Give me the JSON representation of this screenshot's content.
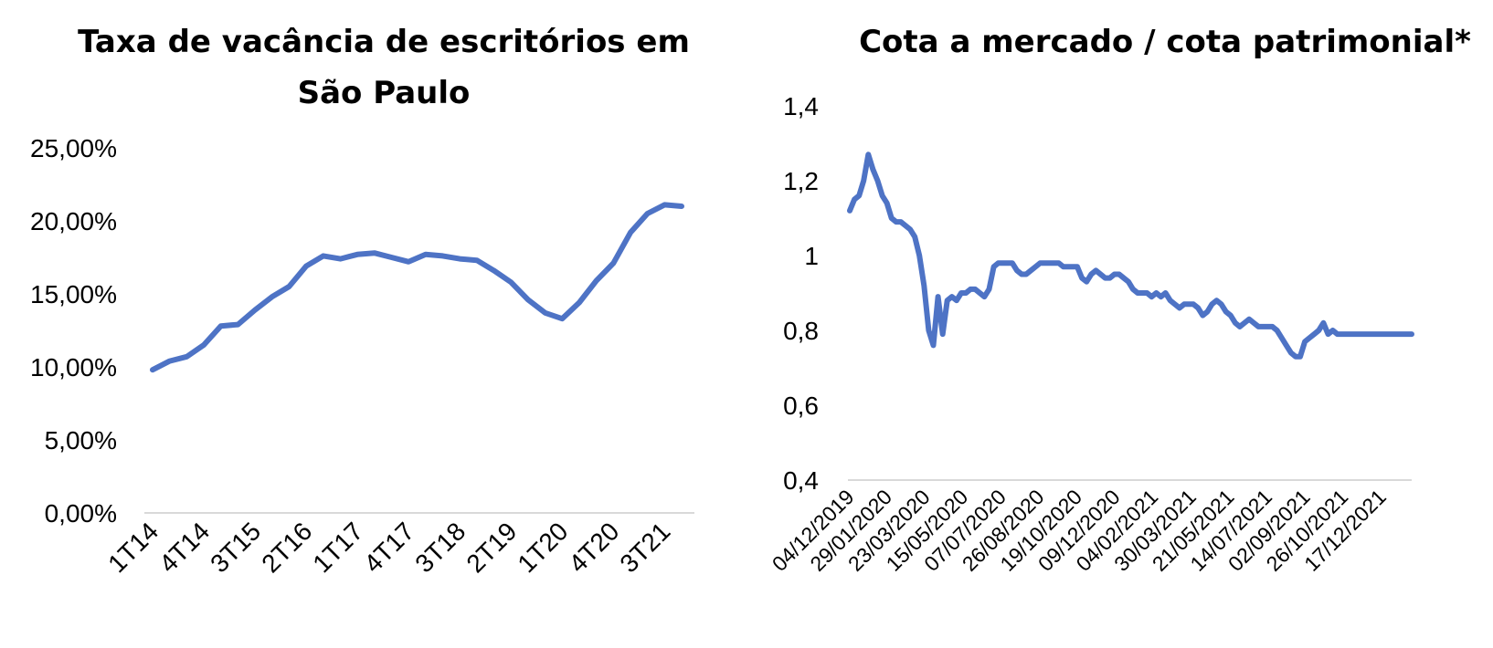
{
  "chart_data": [
    {
      "type": "line",
      "title_line1": "Taxa de vacância de escritórios em",
      "title_line2": "São Paulo",
      "xlabel": "",
      "ylabel": "",
      "ylim": [
        0,
        25
      ],
      "y_ticks": [
        "0,00%",
        "5,00%",
        "10,00%",
        "15,00%",
        "20,00%",
        "25,00%"
      ],
      "grid": false,
      "legend": "none",
      "color": "#4e73c5",
      "x_tick_labels": [
        "1T14",
        "4T14",
        "3T15",
        "2T16",
        "1T17",
        "4T17",
        "3T18",
        "2T19",
        "1T20",
        "4T20",
        "3T21"
      ],
      "categories": [
        "1T14",
        "2T14",
        "3T14",
        "4T14",
        "1T15",
        "2T15",
        "3T15",
        "4T15",
        "1T16",
        "2T16",
        "3T16",
        "4T16",
        "1T17",
        "2T17",
        "3T17",
        "4T17",
        "1T18",
        "2T18",
        "3T18",
        "4T18",
        "1T19",
        "2T19",
        "3T19",
        "4T19",
        "1T20",
        "2T20",
        "3T20",
        "4T20",
        "1T21",
        "2T21",
        "3T21",
        "4T21"
      ],
      "values": [
        9.8,
        10.4,
        10.7,
        11.5,
        12.8,
        12.9,
        13.9,
        14.8,
        15.5,
        16.9,
        17.6,
        17.4,
        17.7,
        17.8,
        17.5,
        17.2,
        17.7,
        17.6,
        17.4,
        17.3,
        16.6,
        15.8,
        14.6,
        13.7,
        13.3,
        14.4,
        15.9,
        17.1,
        19.2,
        20.5,
        21.1,
        21.0
      ]
    },
    {
      "type": "line",
      "title": "Cota a mercado / cota patrimonial*",
      "xlabel": "",
      "ylabel": "",
      "ylim": [
        0.4,
        1.4
      ],
      "y_ticks": [
        "0,4",
        "0,6",
        "0,8",
        "1",
        "1,2",
        "1,4"
      ],
      "grid": false,
      "legend": "none",
      "color": "#4e73c5",
      "x_tick_labels": [
        "04/12/2019",
        "29/01/2020",
        "23/03/2020",
        "15/05/2020",
        "07/07/2020",
        "26/08/2020",
        "19/10/2020",
        "09/12/2020",
        "04/02/2021",
        "30/03/2021",
        "21/05/2021",
        "14/07/2021",
        "02/09/2021",
        "26/10/2021",
        "17/12/2021"
      ],
      "x": [
        "04/12/2019",
        "09/12/2019",
        "13/12/2019",
        "18/12/2019",
        "20/12/2019",
        "23/12/2019",
        "27/12/2019",
        "03/01/2020",
        "10/01/2020",
        "17/01/2020",
        "24/01/2020",
        "31/01/2020",
        "07/02/2020",
        "14/02/2020",
        "21/02/2020",
        "28/02/2020",
        "06/03/2020",
        "11/03/2020",
        "13/03/2020",
        "16/03/2020",
        "18/03/2020",
        "20/03/2020",
        "23/03/2020",
        "25/03/2020",
        "27/03/2020",
        "30/03/2020",
        "02/04/2020",
        "09/04/2020",
        "17/04/2020",
        "24/04/2020",
        "01/05/2020",
        "08/05/2020",
        "15/05/2020",
        "22/05/2020",
        "29/05/2020",
        "05/06/2020",
        "12/06/2020",
        "19/06/2020",
        "26/06/2020",
        "03/07/2020",
        "10/07/2020",
        "17/07/2020",
        "24/07/2020",
        "31/07/2020",
        "07/08/2020",
        "14/08/2020",
        "21/08/2020",
        "28/08/2020",
        "04/09/2020",
        "11/09/2020",
        "18/09/2020",
        "25/09/2020",
        "02/10/2020",
        "09/10/2020",
        "16/10/2020",
        "23/10/2020",
        "30/10/2020",
        "06/11/2020",
        "13/11/2020",
        "20/11/2020",
        "27/11/2020",
        "04/12/2020",
        "11/12/2020",
        "18/12/2020",
        "23/12/2020",
        "30/12/2020",
        "08/01/2021",
        "15/01/2021",
        "22/01/2021",
        "29/01/2021",
        "05/02/2021",
        "12/02/2021",
        "19/02/2021",
        "26/02/2021",
        "05/03/2021",
        "12/03/2021",
        "19/03/2021",
        "26/03/2021",
        "02/04/2021",
        "09/04/2021",
        "16/04/2021",
        "23/04/2021",
        "30/04/2021",
        "07/05/2021",
        "14/05/2021",
        "21/05/2021",
        "28/05/2021",
        "04/06/2021",
        "11/06/2021",
        "18/06/2021",
        "25/06/2021",
        "02/07/2021",
        "09/07/2021",
        "16/07/2021",
        "23/07/2021",
        "30/07/2021",
        "06/08/2021",
        "13/08/2021",
        "20/08/2021",
        "27/08/2021",
        "03/09/2021",
        "10/09/2021",
        "17/09/2021",
        "24/09/2021",
        "01/10/2021",
        "08/10/2021",
        "15/10/2021",
        "22/10/2021",
        "29/10/2021",
        "05/11/2021",
        "12/11/2021",
        "19/11/2021",
        "26/11/2021",
        "03/12/2021",
        "10/12/2021",
        "17/12/2021",
        "23/12/2021",
        "30/12/2021",
        "07/01/2022",
        "14/01/2022",
        "21/01/2022",
        "28/01/2022"
      ],
      "values": [
        1.12,
        1.15,
        1.16,
        1.2,
        1.27,
        1.23,
        1.2,
        1.16,
        1.14,
        1.1,
        1.09,
        1.09,
        1.08,
        1.07,
        1.05,
        1.0,
        0.92,
        0.8,
        0.76,
        0.89,
        0.79,
        0.88,
        0.89,
        0.88,
        0.9,
        0.9,
        0.91,
        0.91,
        0.9,
        0.89,
        0.91,
        0.97,
        0.98,
        0.98,
        0.98,
        0.98,
        0.96,
        0.95,
        0.95,
        0.96,
        0.97,
        0.98,
        0.98,
        0.98,
        0.98,
        0.98,
        0.97,
        0.97,
        0.97,
        0.97,
        0.94,
        0.93,
        0.95,
        0.96,
        0.95,
        0.94,
        0.94,
        0.95,
        0.95,
        0.94,
        0.93,
        0.91,
        0.9,
        0.9,
        0.9,
        0.89,
        0.9,
        0.89,
        0.9,
        0.88,
        0.87,
        0.86,
        0.87,
        0.87,
        0.87,
        0.86,
        0.84,
        0.85,
        0.87,
        0.88,
        0.87,
        0.85,
        0.84,
        0.82,
        0.81,
        0.82,
        0.83,
        0.82,
        0.81,
        0.81,
        0.81,
        0.81,
        0.8,
        0.78,
        0.76,
        0.74,
        0.73,
        0.73,
        0.77,
        0.78,
        0.79,
        0.8,
        0.82,
        0.79,
        0.8,
        0.79,
        0.79,
        0.79,
        0.79,
        0.79,
        0.79,
        0.79,
        0.79,
        0.79,
        0.79,
        0.79,
        0.79,
        0.79,
        0.79,
        0.79,
        0.79,
        0.79
      ]
    }
  ]
}
